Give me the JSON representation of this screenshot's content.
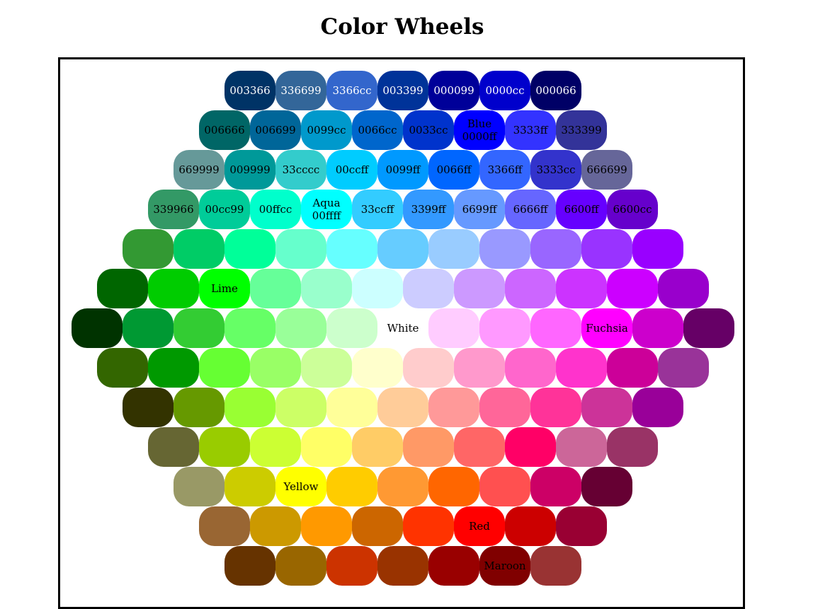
{
  "title": "Color Wheels",
  "rows": [
    [
      {
        "color": "#003366",
        "label": "003366",
        "text_color": "#ffffff"
      },
      {
        "color": "#336699",
        "label": "336699",
        "text_color": "#ffffff"
      },
      {
        "color": "#3366cc",
        "label": "3366cc",
        "text_color": "#ffffff"
      },
      {
        "color": "#003399",
        "label": "003399",
        "text_color": "#ffffff"
      },
      {
        "color": "#000099",
        "label": "000099",
        "text_color": "#ffffff"
      },
      {
        "color": "#0000cc",
        "label": "0000cc",
        "text_color": "#ffffff"
      },
      {
        "color": "#000066",
        "label": "000066",
        "text_color": "#ffffff"
      }
    ],
    [
      {
        "color": "#006666",
        "label": "006666"
      },
      {
        "color": "#006699",
        "label": "006699"
      },
      {
        "color": "#0099cc",
        "label": "0099cc"
      },
      {
        "color": "#0066cc",
        "label": "0066cc"
      },
      {
        "color": "#0033cc",
        "label": "0033cc"
      },
      {
        "color": "#0000ff",
        "label": "Blue\n0000ff"
      },
      {
        "color": "#3333ff",
        "label": "3333ff"
      },
      {
        "color": "#333399",
        "label": "333399"
      }
    ],
    [
      {
        "color": "#669999",
        "label": "669999"
      },
      {
        "color": "#009999",
        "label": "009999"
      },
      {
        "color": "#33cccc",
        "label": "33cccc"
      },
      {
        "color": "#00ccff",
        "label": "00ccff"
      },
      {
        "color": "#0099ff",
        "label": "0099ff"
      },
      {
        "color": "#0066ff",
        "label": "0066ff"
      },
      {
        "color": "#3366ff",
        "label": "3366ff"
      },
      {
        "color": "#3333cc",
        "label": "3333cc"
      },
      {
        "color": "#666699",
        "label": "666699"
      }
    ],
    [
      {
        "color": "#339966",
        "label": "339966"
      },
      {
        "color": "#00cc99",
        "label": "00cc99"
      },
      {
        "color": "#00ffcc",
        "label": "00ffcc"
      },
      {
        "color": "#00ffff",
        "label": "Aqua\n00ffff"
      },
      {
        "color": "#33ccff",
        "label": "33ccff"
      },
      {
        "color": "#3399ff",
        "label": "3399ff"
      },
      {
        "color": "#6699ff",
        "label": "6699ff"
      },
      {
        "color": "#6666ff",
        "label": "6666ff"
      },
      {
        "color": "#6600ff",
        "label": "6600ff"
      },
      {
        "color": "#6600cc",
        "label": "6600cc"
      }
    ],
    [
      {
        "color": "#339933"
      },
      {
        "color": "#00cc66"
      },
      {
        "color": "#00ff99"
      },
      {
        "color": "#66ffcc"
      },
      {
        "color": "#66ffff"
      },
      {
        "color": "#66ccff"
      },
      {
        "color": "#99ccff"
      },
      {
        "color": "#9999ff"
      },
      {
        "color": "#9966ff"
      },
      {
        "color": "#9933ff"
      },
      {
        "color": "#9900ff"
      }
    ],
    [
      {
        "color": "#006600"
      },
      {
        "color": "#00cc00"
      },
      {
        "color": "#00ff00",
        "label": "Lime"
      },
      {
        "color": "#66ff99"
      },
      {
        "color": "#99ffcc"
      },
      {
        "color": "#ccffff"
      },
      {
        "color": "#ccccff"
      },
      {
        "color": "#cc99ff"
      },
      {
        "color": "#cc66ff"
      },
      {
        "color": "#cc33ff"
      },
      {
        "color": "#cc00ff"
      },
      {
        "color": "#9900cc"
      }
    ],
    [
      {
        "color": "#003300"
      },
      {
        "color": "#009933"
      },
      {
        "color": "#33cc33"
      },
      {
        "color": "#66ff66"
      },
      {
        "color": "#99ff99"
      },
      {
        "color": "#ccffcc"
      },
      {
        "color": "#ffffff",
        "label": "White"
      },
      {
        "color": "#ffccff"
      },
      {
        "color": "#ff99ff"
      },
      {
        "color": "#ff66ff"
      },
      {
        "color": "#ff00ff",
        "label": "Fuchsia"
      },
      {
        "color": "#cc00cc"
      },
      {
        "color": "#660066"
      }
    ],
    [
      {
        "color": "#336600"
      },
      {
        "color": "#009900"
      },
      {
        "color": "#66ff33"
      },
      {
        "color": "#99ff66"
      },
      {
        "color": "#ccff99"
      },
      {
        "color": "#ffffcc"
      },
      {
        "color": "#ffcccc"
      },
      {
        "color": "#ff99cc"
      },
      {
        "color": "#ff66cc"
      },
      {
        "color": "#ff33cc"
      },
      {
        "color": "#cc0099"
      },
      {
        "color": "#993399"
      }
    ],
    [
      {
        "color": "#333300"
      },
      {
        "color": "#669900"
      },
      {
        "color": "#99ff33"
      },
      {
        "color": "#ccff66"
      },
      {
        "color": "#ffff99"
      },
      {
        "color": "#ffcc99"
      },
      {
        "color": "#ff9999"
      },
      {
        "color": "#ff6699"
      },
      {
        "color": "#ff3399"
      },
      {
        "color": "#cc3399"
      },
      {
        "color": "#990099"
      }
    ],
    [
      {
        "color": "#666633"
      },
      {
        "color": "#99cc00"
      },
      {
        "color": "#ccff33"
      },
      {
        "color": "#ffff66"
      },
      {
        "color": "#ffcc66"
      },
      {
        "color": "#ff9966"
      },
      {
        "color": "#ff6666"
      },
      {
        "color": "#ff0066"
      },
      {
        "color": "#cc6699"
      },
      {
        "color": "#993366"
      }
    ],
    [
      {
        "color": "#999966"
      },
      {
        "color": "#cccc00"
      },
      {
        "color": "#ffff00",
        "label": "Yellow"
      },
      {
        "color": "#ffcc00"
      },
      {
        "color": "#ff9933"
      },
      {
        "color": "#ff6600"
      },
      {
        "color": "#ff5050"
      },
      {
        "color": "#cc0066"
      },
      {
        "color": "#660033"
      }
    ],
    [
      {
        "color": "#996633"
      },
      {
        "color": "#cc9900"
      },
      {
        "color": "#ff9900"
      },
      {
        "color": "#cc6600"
      },
      {
        "color": "#ff3300"
      },
      {
        "color": "#ff0000",
        "label": "Red"
      },
      {
        "color": "#cc0000"
      },
      {
        "color": "#990033"
      }
    ],
    [
      {
        "color": "#663300"
      },
      {
        "color": "#996600"
      },
      {
        "color": "#cc3300"
      },
      {
        "color": "#993300"
      },
      {
        "color": "#990000"
      },
      {
        "color": "#800000",
        "label": "Maroon"
      },
      {
        "color": "#993333"
      }
    ]
  ]
}
